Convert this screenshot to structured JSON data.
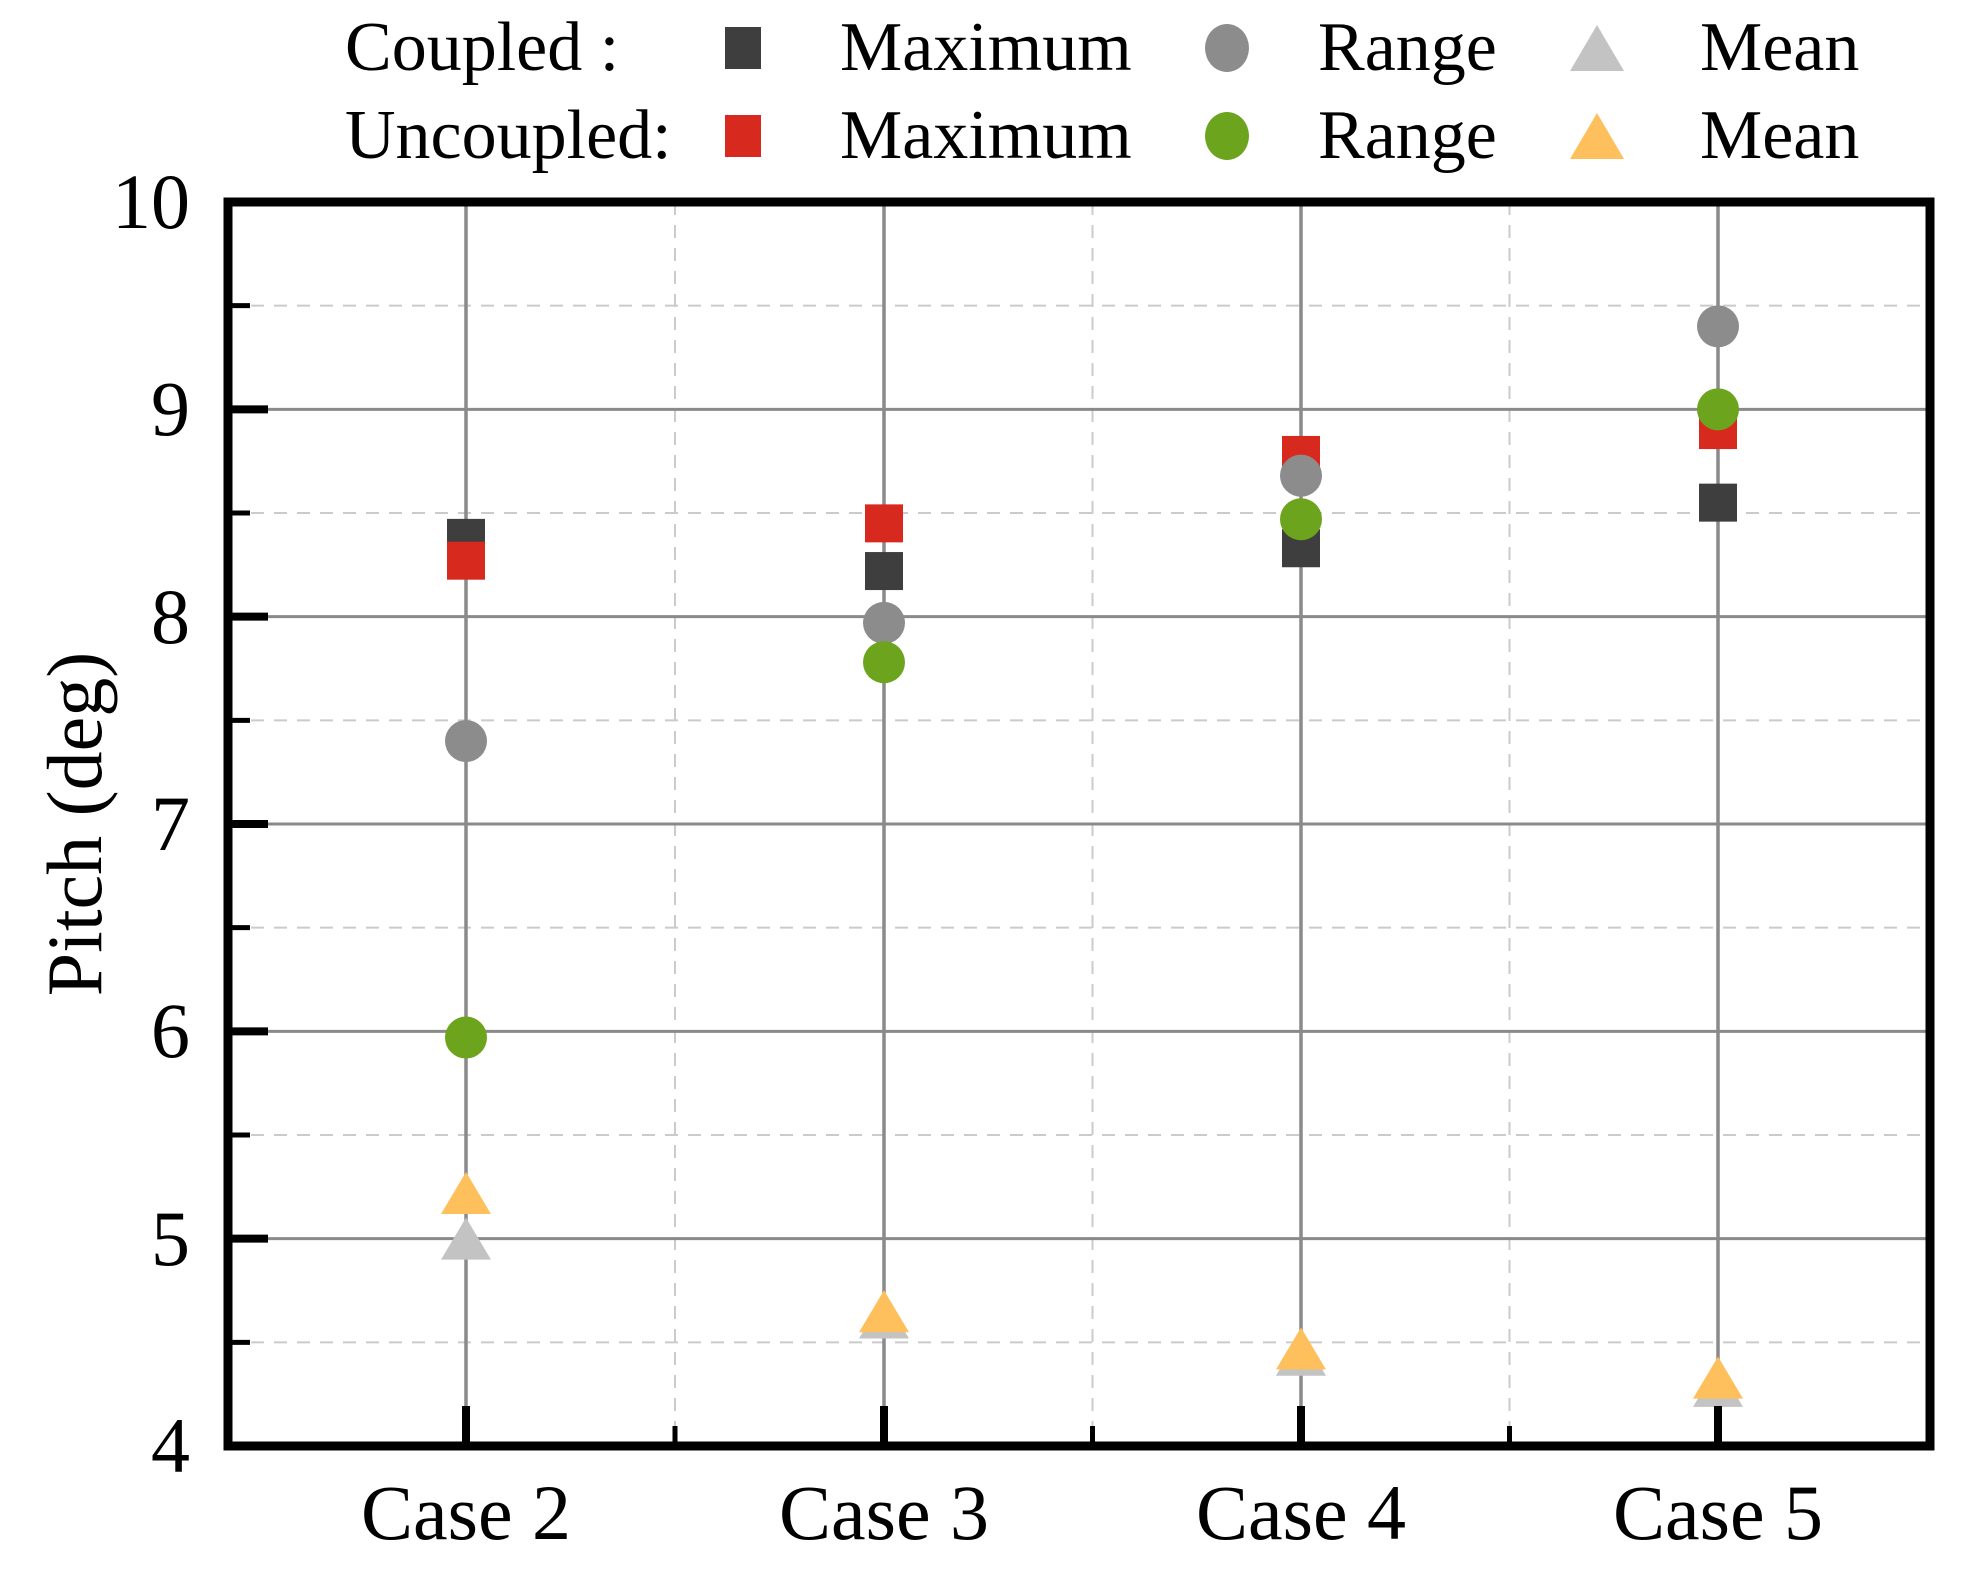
{
  "legend": {
    "rows": [
      {
        "label": "Coupled :",
        "items": [
          {
            "label": "Maximum",
            "marker": "square",
            "color": "#3e3e3e"
          },
          {
            "label": "Range",
            "marker": "circle",
            "color": "#8c8c8c"
          },
          {
            "label": "Mean",
            "marker": "triangle",
            "color": "#c3c3c3"
          }
        ]
      },
      {
        "label": "Uncoupled:",
        "items": [
          {
            "label": "Maximum",
            "marker": "square",
            "color": "#d8291e"
          },
          {
            "label": "Range",
            "marker": "circle",
            "color": "#6ca41e"
          },
          {
            "label": "Mean",
            "marker": "triangle",
            "color": "#fdc05c"
          }
        ]
      }
    ]
  },
  "chart_data": {
    "type": "scatter",
    "title": "",
    "xlabel": "",
    "ylabel": "Pitch (deg)",
    "categories": [
      "Case 2",
      "Case 3",
      "Case 4",
      "Case 5"
    ],
    "ylim": [
      4,
      10
    ],
    "ytick_labels": [
      "10",
      "9",
      "8",
      "7",
      "6",
      "5",
      "4"
    ],
    "yticks_major": [
      4,
      5,
      6,
      7,
      8,
      9,
      10
    ],
    "yticks_minor": [
      4.5,
      5.5,
      6.5,
      7.5,
      8.5,
      9.5
    ],
    "grid": {
      "major_color": "#8a8a8a",
      "minor_color": "#cbcbcb",
      "frame_color": "#000000",
      "major_gridlines_solid": true,
      "minor_gridlines_dashed": true
    },
    "legend_position": "top",
    "series": [
      {
        "name": "Coupled Maximum",
        "group": "Coupled",
        "stat": "Maximum",
        "marker": "square",
        "color": "#3e3e3e",
        "values": [
          8.38,
          8.22,
          8.33,
          8.55
        ]
      },
      {
        "name": "Uncoupled Maximum",
        "group": "Uncoupled",
        "stat": "Maximum",
        "marker": "square",
        "color": "#d8291e",
        "values": [
          8.27,
          8.45,
          8.78,
          8.9
        ]
      },
      {
        "name": "Coupled Range",
        "group": "Coupled",
        "stat": "Range",
        "marker": "circle",
        "color": "#8c8c8c",
        "values": [
          7.4,
          7.97,
          8.68,
          9.4
        ]
      },
      {
        "name": "Uncoupled Range",
        "group": "Uncoupled",
        "stat": "Range",
        "marker": "circle",
        "color": "#6ca41e",
        "values": [
          5.97,
          7.78,
          8.47,
          9.0
        ]
      },
      {
        "name": "Coupled Mean",
        "group": "Coupled",
        "stat": "Mean",
        "marker": "triangle",
        "color": "#c3c3c3",
        "values": [
          5.0,
          4.62,
          4.44,
          4.29
        ]
      },
      {
        "name": "Uncoupled Mean",
        "group": "Uncoupled",
        "stat": "Mean",
        "marker": "triangle",
        "color": "#fdc05c",
        "values": [
          5.22,
          4.65,
          4.47,
          4.33
        ]
      }
    ]
  }
}
